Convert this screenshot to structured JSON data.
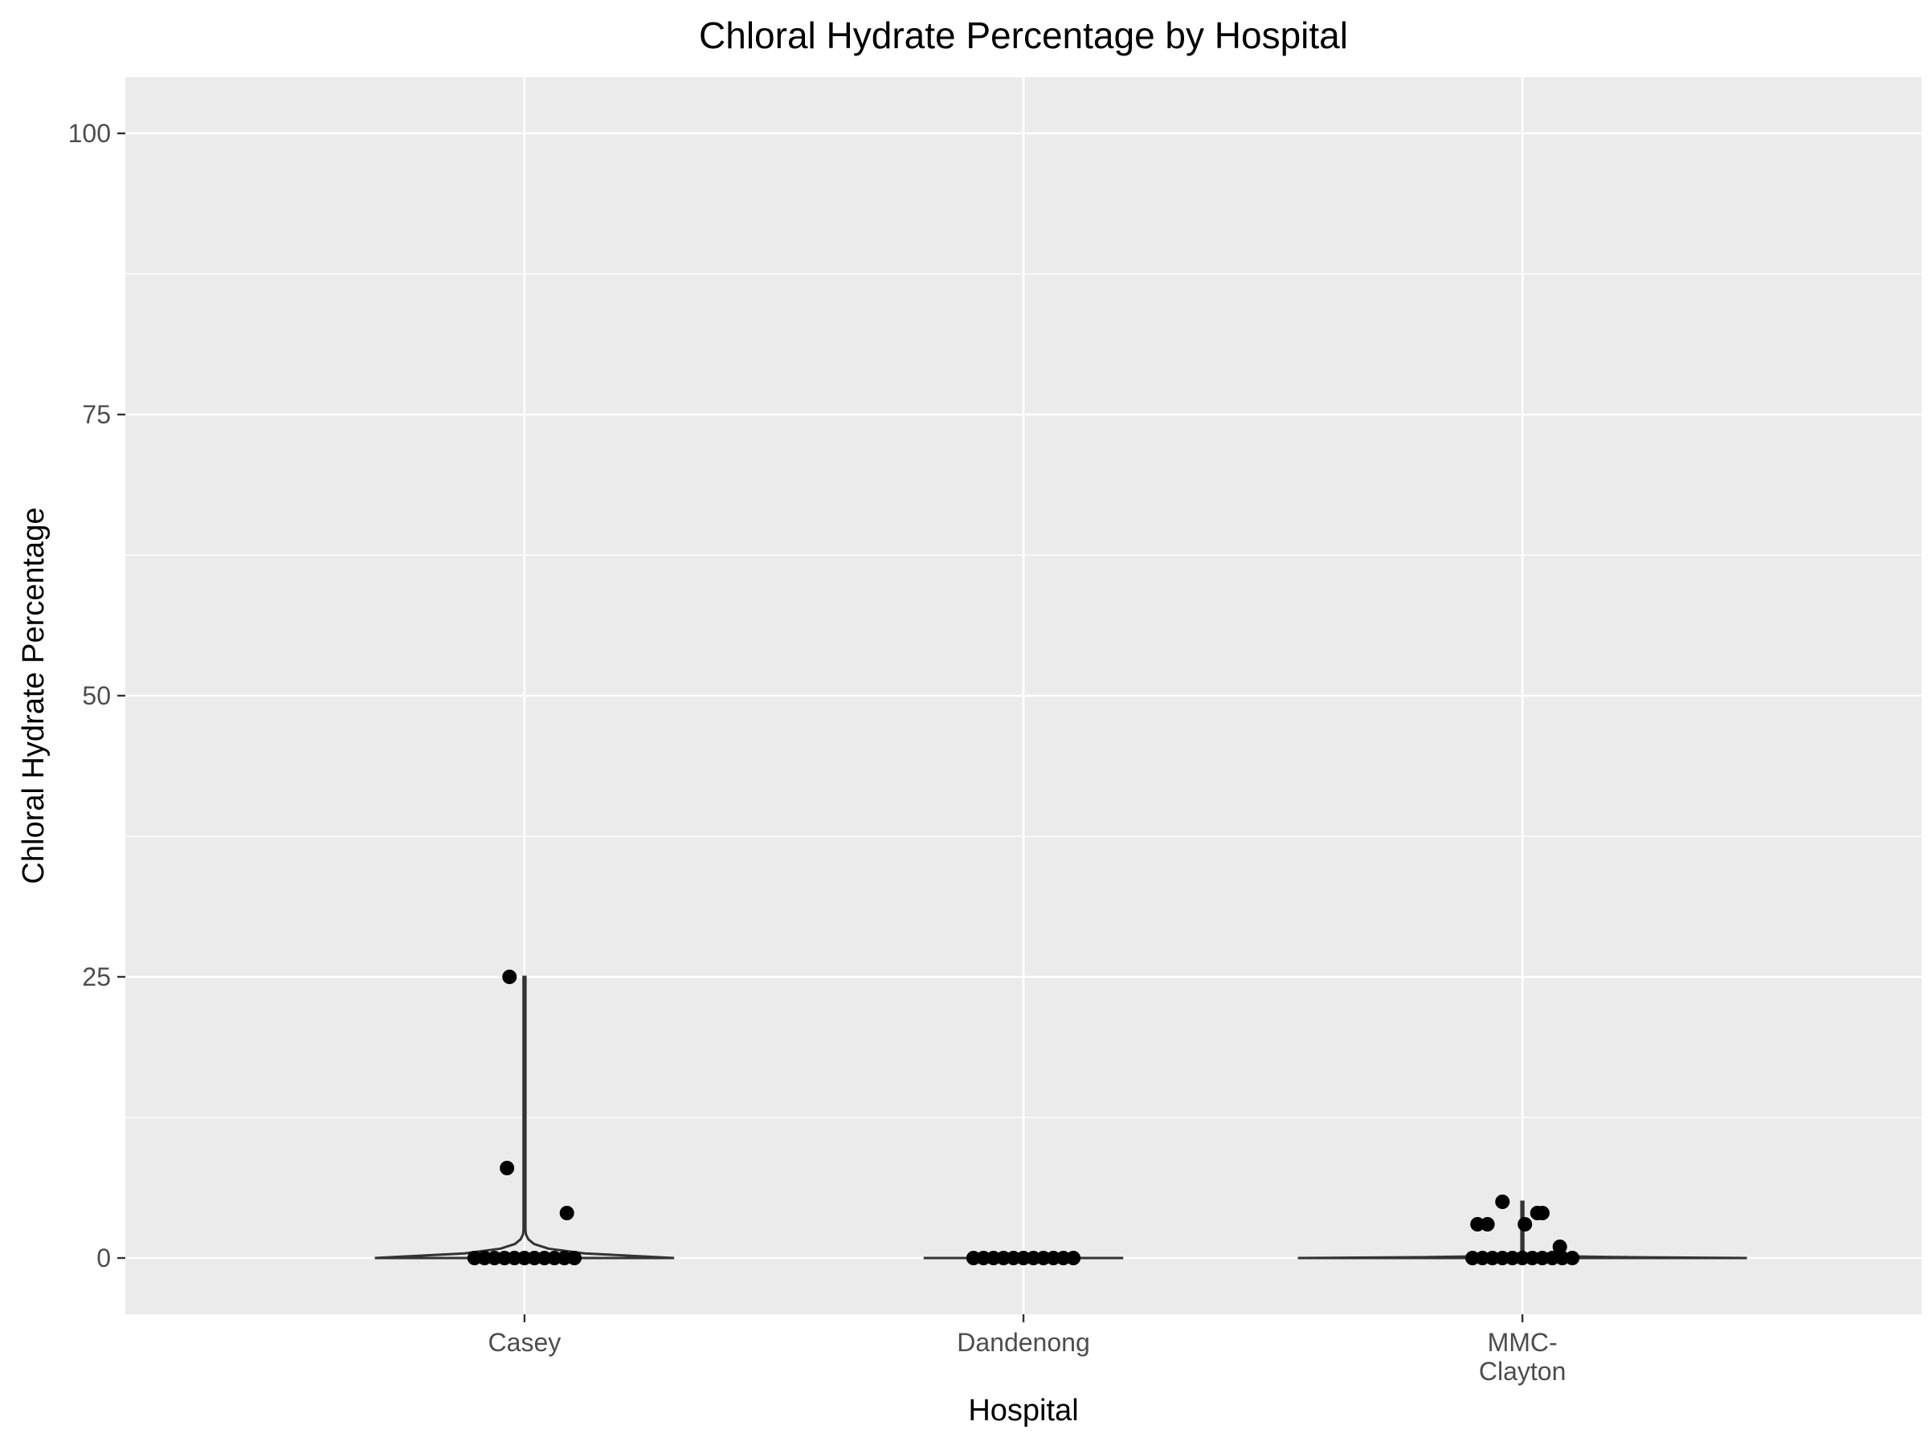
{
  "chart_data": {
    "type": "violin",
    "title": "Chloral Hydrate Percentage by Hospital",
    "xlabel": "Hospital",
    "ylabel": "Chloral Hydrate Percentage",
    "ylim": [
      -5,
      105
    ],
    "yticks": [
      0,
      25,
      50,
      75,
      100
    ],
    "grid": true,
    "legend": "none",
    "colors": {
      "panel": "#ebebeb",
      "grid": "#ffffff",
      "violin_outline": "#333333",
      "points": "#000000",
      "tick_text": "#4d4d4d"
    },
    "categories": [
      {
        "name": "Casey",
        "label_lines": [
          "Casey"
        ],
        "range": [
          0,
          25
        ],
        "violin_width": 0.3,
        "points": [
          {
            "x": -0.03,
            "y": 25
          },
          {
            "x": -0.035,
            "y": 8
          },
          {
            "x": 0.085,
            "y": 4
          },
          {
            "x": -0.1,
            "y": 0
          },
          {
            "x": -0.08,
            "y": 0
          },
          {
            "x": -0.06,
            "y": 0
          },
          {
            "x": -0.04,
            "y": 0
          },
          {
            "x": -0.02,
            "y": 0
          },
          {
            "x": 0.0,
            "y": 0
          },
          {
            "x": 0.02,
            "y": 0
          },
          {
            "x": 0.04,
            "y": 0
          },
          {
            "x": 0.06,
            "y": 0
          },
          {
            "x": 0.08,
            "y": 0
          },
          {
            "x": 0.1,
            "y": 0
          }
        ]
      },
      {
        "name": "Dandenong",
        "label_lines": [
          "Dandenong"
        ],
        "range": [
          0,
          0
        ],
        "violin_width": 0.2,
        "points": [
          {
            "x": -0.1,
            "y": 0
          },
          {
            "x": -0.08,
            "y": 0
          },
          {
            "x": -0.06,
            "y": 0
          },
          {
            "x": -0.04,
            "y": 0
          },
          {
            "x": -0.02,
            "y": 0
          },
          {
            "x": 0.0,
            "y": 0
          },
          {
            "x": 0.02,
            "y": 0
          },
          {
            "x": 0.04,
            "y": 0
          },
          {
            "x": 0.06,
            "y": 0
          },
          {
            "x": 0.08,
            "y": 0
          },
          {
            "x": 0.1,
            "y": 0
          }
        ]
      },
      {
        "name": "MMC-Clayton",
        "label_lines": [
          "MMC-",
          "Clayton"
        ],
        "range": [
          0,
          5
        ],
        "violin_width": 0.45,
        "points": [
          {
            "x": -0.04,
            "y": 5
          },
          {
            "x": -0.09,
            "y": 3
          },
          {
            "x": -0.07,
            "y": 3
          },
          {
            "x": 0.005,
            "y": 3
          },
          {
            "x": 0.03,
            "y": 4
          },
          {
            "x": 0.04,
            "y": 4
          },
          {
            "x": 0.075,
            "y": 1
          },
          {
            "x": -0.1,
            "y": 0
          },
          {
            "x": -0.08,
            "y": 0
          },
          {
            "x": -0.06,
            "y": 0
          },
          {
            "x": -0.04,
            "y": 0
          },
          {
            "x": -0.02,
            "y": 0
          },
          {
            "x": 0.0,
            "y": 0
          },
          {
            "x": 0.02,
            "y": 0
          },
          {
            "x": 0.04,
            "y": 0
          },
          {
            "x": 0.06,
            "y": 0
          },
          {
            "x": 0.08,
            "y": 0
          },
          {
            "x": 0.1,
            "y": 0
          }
        ]
      }
    ]
  }
}
